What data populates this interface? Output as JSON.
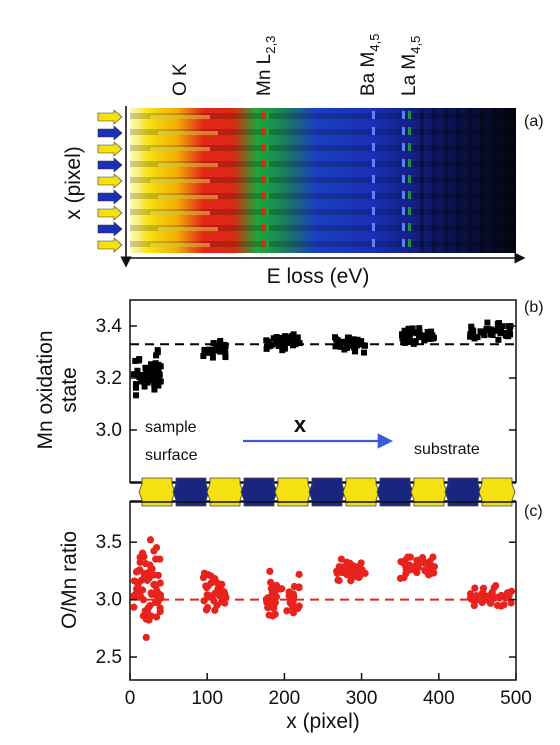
{
  "panel_a": {
    "panel_label": "(a)",
    "y_axis_label": "x (pixel)",
    "x_axis_label": "E loss (eV)",
    "edge_labels": [
      "O K",
      "Mn L2,3",
      "Ba M4,5",
      "La M4,5"
    ],
    "colors": {
      "yellow": "#f5e10f",
      "red": "#e5261a",
      "green": "#1ea83a",
      "blue": "#1a2fb5",
      "dark": "#05060f"
    }
  },
  "chart_data": [
    {
      "type": "scatter",
      "panel_label": "(b)",
      "ylabel": "Mn oxidation state",
      "xlim": [
        0,
        500
      ],
      "ylim": [
        2.8,
        3.5
      ],
      "yticks": [
        3.0,
        3.2,
        3.4
      ],
      "reference_line": {
        "y": 3.33,
        "style": "dashed",
        "color": "#000000"
      },
      "marker": "square",
      "color": "#000000",
      "clusters": [
        {
          "x_range": [
            5,
            40
          ],
          "y_center": 3.22,
          "y_spread": 0.1,
          "n": 60
        },
        {
          "x_range": [
            95,
            125
          ],
          "y_center": 3.31,
          "y_spread": 0.04,
          "n": 35
        },
        {
          "x_range": [
            175,
            220
          ],
          "y_center": 3.34,
          "y_spread": 0.04,
          "n": 40
        },
        {
          "x_range": [
            265,
            305
          ],
          "y_center": 3.33,
          "y_spread": 0.04,
          "n": 35
        },
        {
          "x_range": [
            350,
            395
          ],
          "y_center": 3.36,
          "y_spread": 0.04,
          "n": 40
        },
        {
          "x_range": [
            440,
            495
          ],
          "y_center": 3.38,
          "y_spread": 0.04,
          "n": 40
        }
      ],
      "annotations": {
        "left_line1": "sample",
        "left_line2": "surface",
        "arrow": "x",
        "right": "substrate"
      }
    },
    {
      "type": "scatter",
      "panel_label": "(c)",
      "ylabel": "O/Mn ratio",
      "xlabel": "x (pixel)",
      "xlim": [
        0,
        500
      ],
      "ylim": [
        2.3,
        3.85
      ],
      "xticks": [
        0,
        100,
        200,
        300,
        400,
        500
      ],
      "yticks": [
        2.5,
        3.0,
        3.5
      ],
      "reference_line": {
        "y": 3.0,
        "style": "dashed",
        "color": "#e8221c"
      },
      "marker": "circle",
      "color": "#e8221c",
      "clusters": [
        {
          "x_range": [
            5,
            40
          ],
          "y_center": 3.1,
          "y_spread": 0.55,
          "n": 60
        },
        {
          "x_range": [
            95,
            125
          ],
          "y_center": 3.05,
          "y_spread": 0.22,
          "n": 35
        },
        {
          "x_range": [
            175,
            220
          ],
          "y_center": 3.03,
          "y_spread": 0.25,
          "n": 45
        },
        {
          "x_range": [
            265,
            305
          ],
          "y_center": 3.23,
          "y_spread": 0.15,
          "n": 40
        },
        {
          "x_range": [
            350,
            395
          ],
          "y_center": 3.28,
          "y_spread": 0.15,
          "n": 45
        },
        {
          "x_range": [
            440,
            495
          ],
          "y_center": 3.03,
          "y_spread": 0.12,
          "n": 40
        }
      ]
    }
  ],
  "lattice_strip": {
    "cell_count": 11,
    "colors": {
      "yellow": "#f5e10f",
      "blue": "#1a2580"
    }
  }
}
